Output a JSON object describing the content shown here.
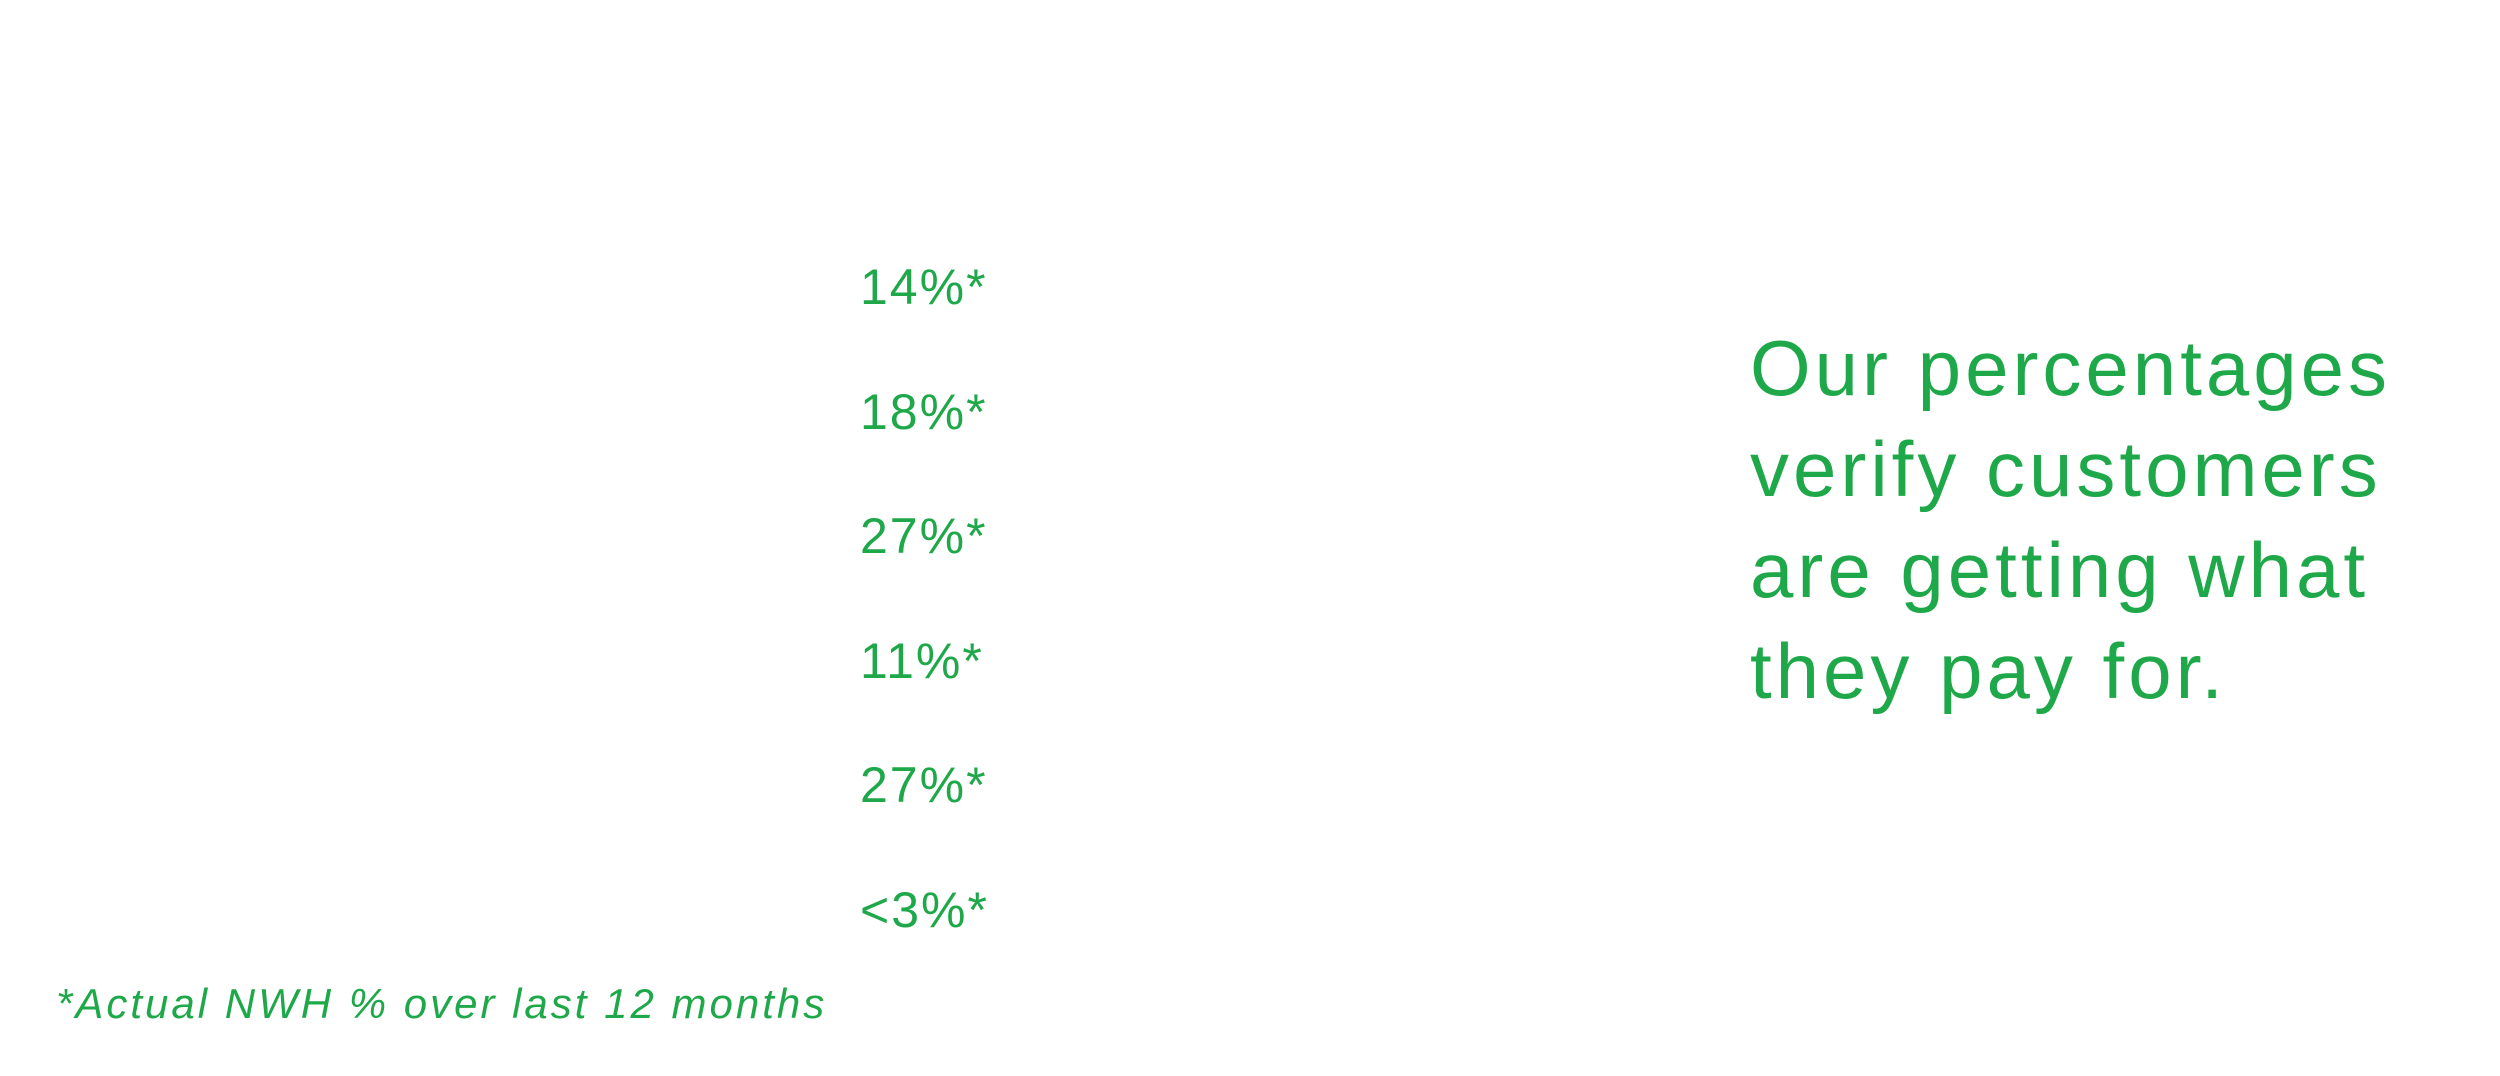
{
  "percentages": [
    "14%*",
    "18%*",
    "27%*",
    "11%*",
    "27%*",
    "<3%*"
  ],
  "headline": [
    "Our percentages",
    "verify customers",
    "are getting what",
    "they pay for."
  ],
  "footnote": "*Actual NWH % over last 12 months"
}
